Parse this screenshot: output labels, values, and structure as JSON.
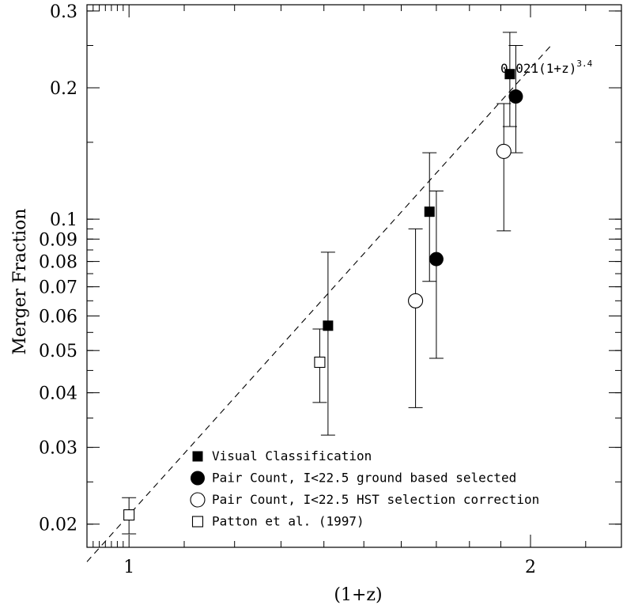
{
  "chart_data": {
    "type": "scatter",
    "xlabel": "(1+z)",
    "ylabel": "Merger Fraction",
    "x_scale": "log",
    "y_scale": "log",
    "xlim": [
      0.93,
      2.34
    ],
    "ylim": [
      0.0177,
      0.31
    ],
    "x_tick_labels": [
      "1",
      "2"
    ],
    "y_tick_labels": [
      "0.02",
      "0.03",
      "0.04",
      "0.05",
      "0.06",
      "0.07",
      "0.08",
      "0.09",
      "0.1",
      "0.2",
      "0.3"
    ],
    "grid": false,
    "legend_position": "bottom-center",
    "fit": {
      "label_prefix": "0.021(1+z)",
      "label_exponent": "3.4",
      "coefficient": 0.021,
      "exponent": 3.4,
      "style": "dashed"
    },
    "series": [
      {
        "name": "Visual Classification",
        "marker": "filled-square",
        "points": [
          {
            "x": 1.41,
            "y": 0.057,
            "ylo": 0.032,
            "yhi": 0.084
          },
          {
            "x": 1.68,
            "y": 0.104,
            "ylo": 0.072,
            "yhi": 0.142
          },
          {
            "x": 1.93,
            "y": 0.215,
            "ylo": 0.163,
            "yhi": 0.268
          }
        ]
      },
      {
        "name": "Pair Count, I<22.5 ground based selected",
        "marker": "filled-circle",
        "points": [
          {
            "x": 1.7,
            "y": 0.081,
            "ylo": 0.048,
            "yhi": 0.116
          },
          {
            "x": 1.95,
            "y": 0.191,
            "ylo": 0.142,
            "yhi": 0.25
          }
        ]
      },
      {
        "name": "Pair Count, I<22.5 HST selection correction",
        "marker": "open-circle",
        "points": [
          {
            "x": 1.64,
            "y": 0.065,
            "ylo": 0.037,
            "yhi": 0.095
          },
          {
            "x": 1.91,
            "y": 0.143,
            "ylo": 0.094,
            "yhi": 0.184
          }
        ]
      },
      {
        "name": "Patton et al. (1997)",
        "marker": "open-square",
        "points": [
          {
            "x": 1.0,
            "y": 0.021,
            "ylo": 0.019,
            "yhi": 0.023
          },
          {
            "x": 1.39,
            "y": 0.047,
            "ylo": 0.038,
            "yhi": 0.056
          }
        ]
      }
    ]
  }
}
